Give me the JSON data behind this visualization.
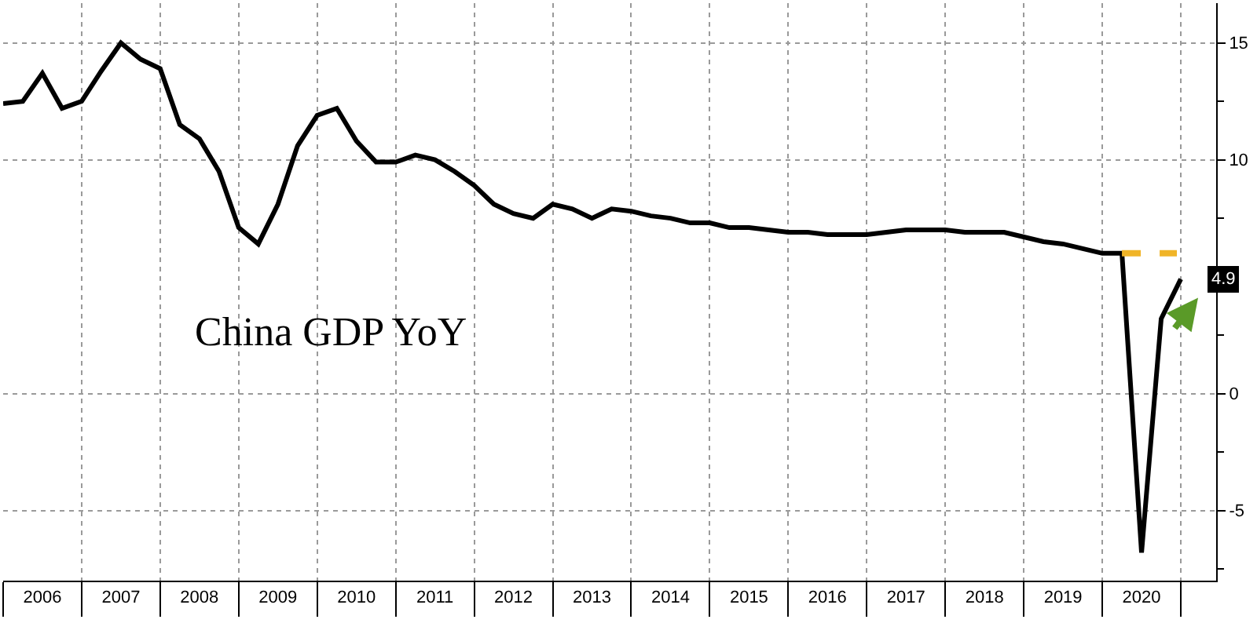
{
  "chart_data": {
    "type": "line",
    "title": "China GDP YoY",
    "series": [
      {
        "color": "#000000",
        "x": [
          2006.0,
          2006.25,
          2006.5,
          2006.75,
          2007.0,
          2007.25,
          2007.5,
          2007.75,
          2008.0,
          2008.25,
          2008.5,
          2008.75,
          2009.0,
          2009.25,
          2009.5,
          2009.75,
          2010.0,
          2010.25,
          2010.5,
          2010.75,
          2011.0,
          2011.25,
          2011.5,
          2011.75,
          2012.0,
          2012.25,
          2012.5,
          2012.75,
          2013.0,
          2013.25,
          2013.5,
          2013.75,
          2014.0,
          2014.25,
          2014.5,
          2014.75,
          2015.0,
          2015.25,
          2015.5,
          2015.75,
          2016.0,
          2016.25,
          2016.5,
          2016.75,
          2017.0,
          2017.25,
          2017.5,
          2017.75,
          2018.0,
          2018.25,
          2018.5,
          2018.75,
          2019.0,
          2019.25,
          2019.5,
          2019.75,
          2020.0,
          2020.25,
          2020.5,
          2020.75,
          2021.0
        ],
        "values": [
          12.4,
          12.5,
          13.7,
          12.2,
          12.5,
          13.8,
          15.0,
          14.3,
          13.9,
          11.5,
          10.9,
          9.5,
          7.1,
          6.4,
          8.1,
          10.6,
          11.9,
          12.2,
          10.8,
          9.9,
          9.9,
          10.2,
          10.0,
          9.5,
          8.9,
          8.1,
          7.7,
          7.5,
          8.1,
          7.9,
          7.5,
          7.9,
          7.8,
          7.6,
          7.5,
          7.3,
          7.3,
          7.1,
          7.1,
          7.0,
          6.9,
          6.9,
          6.8,
          6.8,
          6.8,
          6.9,
          7.0,
          7.0,
          7.0,
          6.9,
          6.9,
          6.9,
          6.7,
          6.5,
          6.4,
          6.2,
          6.0,
          6.0,
          -6.8,
          3.2,
          4.9
        ],
        "value_labels": [
          null,
          null,
          null,
          null,
          null,
          null,
          null,
          null,
          null,
          null,
          null,
          null,
          null,
          null,
          null,
          null,
          null,
          null,
          null,
          null,
          null,
          null,
          null,
          null,
          null,
          null,
          null,
          null,
          null,
          null,
          null,
          null,
          null,
          null,
          null,
          null,
          null,
          null,
          null,
          null,
          null,
          null,
          null,
          null,
          null,
          null,
          null,
          null,
          null,
          null,
          null,
          null,
          null,
          null,
          null,
          null,
          null,
          null,
          null,
          null,
          "4.9"
        ]
      },
      {
        "type": "line",
        "color": "#f0b428",
        "line_style": "dashed",
        "x": [
          2020.25,
          2020.95
        ],
        "values": [
          6.0,
          6.0
        ]
      }
    ],
    "xlim": [
      2006.0,
      2021.45
    ],
    "xticks": [
      {
        "value": 2006.0,
        "label": null
      },
      {
        "value": 2006.5,
        "label": "2006"
      },
      {
        "value": 2007.0,
        "label": null
      },
      {
        "value": 2007.5,
        "label": "2007"
      },
      {
        "value": 2008.0,
        "label": null
      },
      {
        "value": 2008.5,
        "label": "2008"
      },
      {
        "value": 2009.0,
        "label": null
      },
      {
        "value": 2009.5,
        "label": "2009"
      },
      {
        "value": 2010.0,
        "label": null
      },
      {
        "value": 2010.5,
        "label": "2010"
      },
      {
        "value": 2011.0,
        "label": null
      },
      {
        "value": 2011.5,
        "label": "2011"
      },
      {
        "value": 2012.0,
        "label": null
      },
      {
        "value": 2012.5,
        "label": "2012"
      },
      {
        "value": 2013.0,
        "label": null
      },
      {
        "value": 2013.5,
        "label": "2013"
      },
      {
        "value": 2014.0,
        "label": null
      },
      {
        "value": 2014.5,
        "label": "2014"
      },
      {
        "value": 2015.0,
        "label": null
      },
      {
        "value": 2015.5,
        "label": "2015"
      },
      {
        "value": 2016.0,
        "label": null
      },
      {
        "value": 2016.5,
        "label": "2016"
      },
      {
        "value": 2017.0,
        "label": null
      },
      {
        "value": 2017.5,
        "label": "2017"
      },
      {
        "value": 2018.0,
        "label": null
      },
      {
        "value": 2018.5,
        "label": "2018"
      },
      {
        "value": 2019.0,
        "label": null
      },
      {
        "value": 2019.5,
        "label": "2019"
      },
      {
        "value": 2020.0,
        "label": null
      },
      {
        "value": 2020.5,
        "label": "2020"
      },
      {
        "value": 2021.0,
        "label": null
      }
    ],
    "ylim": [
      -8.0,
      16.7
    ],
    "yticks": [
      {
        "value": -7.5,
        "label": null
      },
      -5,
      {
        "value": -2.5,
        "label": null
      },
      0,
      {
        "value": 2.5,
        "label": null
      },
      {
        "value": 5,
        "label": null
      },
      {
        "value": 7.5,
        "label": null
      },
      10,
      {
        "value": 12.5,
        "label": null
      },
      15
    ],
    "grid": true,
    "marker": "none",
    "line_style": "solid"
  }
}
